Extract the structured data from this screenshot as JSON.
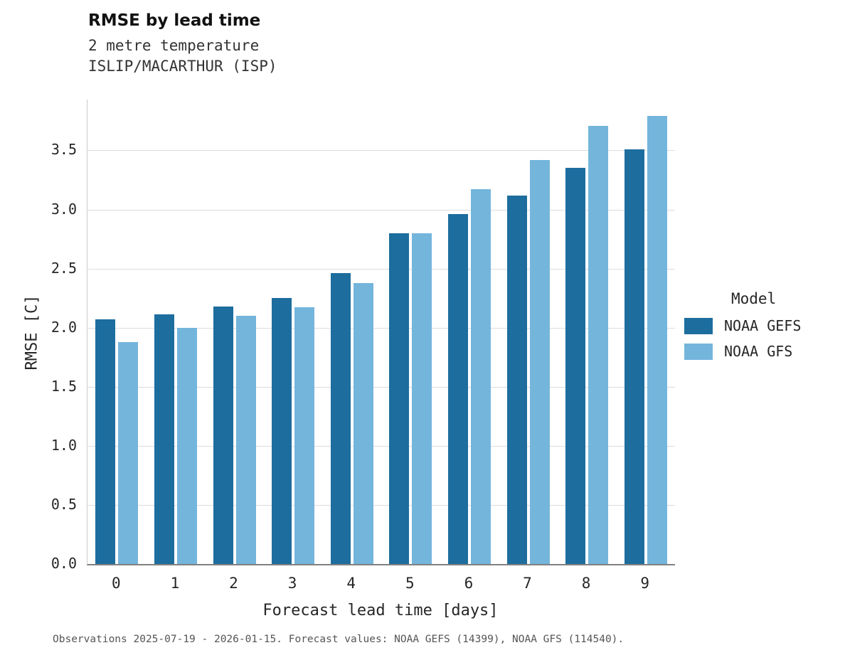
{
  "header": {
    "title": "RMSE by lead time",
    "subtitle1": "2 metre temperature",
    "subtitle2": "ISLIP/MACARTHUR (ISP)"
  },
  "legend": {
    "title": "Model"
  },
  "footer": {
    "caption": "Observations 2025-07-19 - 2026-01-15. Forecast values: NOAA GEFS (14399), NOAA GFS (114540)."
  },
  "chart_data": {
    "type": "bar",
    "title": "RMSE by lead time",
    "subtitle": [
      "2 metre temperature",
      "ISLIP/MACARTHUR (ISP)"
    ],
    "categories": [
      "0",
      "1",
      "2",
      "3",
      "4",
      "5",
      "6",
      "7",
      "8",
      "9"
    ],
    "series": [
      {
        "name": "NOAA GEFS",
        "color": "#1d6d9e",
        "values": [
          2.07,
          2.11,
          2.18,
          2.25,
          2.46,
          2.8,
          2.96,
          3.12,
          3.35,
          3.51
        ]
      },
      {
        "name": "NOAA GFS",
        "color": "#74b5dc",
        "values": [
          1.88,
          2.0,
          2.1,
          2.17,
          2.38,
          2.8,
          3.17,
          3.42,
          3.71,
          3.79
        ]
      }
    ],
    "xlabel": "Forecast lead time [days]",
    "ylabel": "RMSE [C]",
    "ylim": [
      0,
      3.93
    ],
    "yticks": [
      0.0,
      0.5,
      1.0,
      1.5,
      2.0,
      2.5,
      3.0,
      3.5
    ],
    "grid": "horizontal",
    "legend_position": "right",
    "legend_title": "Model"
  }
}
